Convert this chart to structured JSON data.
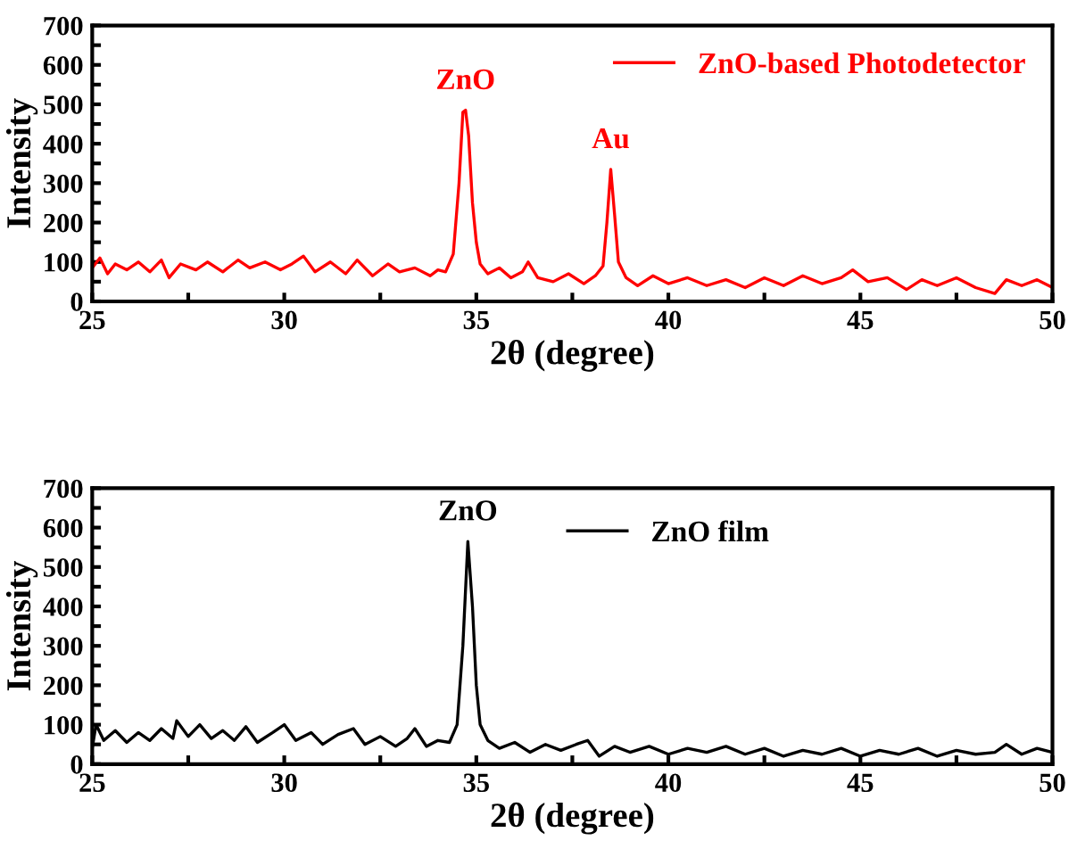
{
  "chart_data": [
    {
      "type": "line",
      "xlabel": "2θ (degree)",
      "ylabel": "Intensity",
      "legend": "top right",
      "grid": false,
      "tick_labels": true,
      "xlim": [
        25,
        50
      ],
      "ylim": [
        0,
        700
      ],
      "xticks": [
        25,
        {
          "value": 27.5,
          "label": null
        },
        30,
        {
          "value": 32.5,
          "label": null
        },
        35,
        {
          "value": 37.5,
          "label": null
        },
        40,
        {
          "value": 42.5,
          "label": null
        },
        45,
        {
          "value": 47.5,
          "label": null
        },
        50
      ],
      "yticks": [
        0,
        {
          "value": 50,
          "label": null
        },
        100,
        {
          "value": 150,
          "label": null
        },
        200,
        {
          "value": 250,
          "label": null
        },
        300,
        {
          "value": 350,
          "label": null
        },
        400,
        {
          "value": 450,
          "label": null
        },
        500,
        {
          "value": 550,
          "label": null
        },
        600,
        {
          "value": 650,
          "label": null
        },
        700
      ],
      "annotations": [
        {
          "text": "ZnO",
          "x": 34.72,
          "y": 485
        },
        {
          "text": "Au",
          "x": 38.5,
          "y": 335
        }
      ],
      "series": [
        {
          "name": "ZnO-based Photodetector",
          "color": "#ff0000",
          "x": [
            25.0,
            25.2,
            25.4,
            25.6,
            25.9,
            26.2,
            26.5,
            26.8,
            27.0,
            27.3,
            27.7,
            28.0,
            28.4,
            28.8,
            29.1,
            29.5,
            29.9,
            30.2,
            30.5,
            30.8,
            31.2,
            31.6,
            31.9,
            32.3,
            32.7,
            33.0,
            33.4,
            33.8,
            34.0,
            34.2,
            34.4,
            34.55,
            34.65,
            34.72,
            34.8,
            34.9,
            35.0,
            35.1,
            35.3,
            35.6,
            35.9,
            36.2,
            36.35,
            36.6,
            37.0,
            37.4,
            37.8,
            38.1,
            38.3,
            38.4,
            38.5,
            38.6,
            38.7,
            38.9,
            39.2,
            39.6,
            40.0,
            40.5,
            41.0,
            41.5,
            42.0,
            42.5,
            43.0,
            43.5,
            44.0,
            44.5,
            44.8,
            45.2,
            45.7,
            46.2,
            46.6,
            47.0,
            47.5,
            48.0,
            48.5,
            48.8,
            49.2,
            49.6,
            50.0
          ],
          "values": [
            85,
            110,
            70,
            95,
            80,
            100,
            75,
            105,
            60,
            95,
            80,
            100,
            75,
            105,
            85,
            100,
            80,
            95,
            115,
            75,
            100,
            70,
            105,
            65,
            95,
            75,
            85,
            65,
            80,
            75,
            120,
            300,
            480,
            485,
            420,
            250,
            150,
            95,
            70,
            85,
            60,
            75,
            100,
            60,
            50,
            70,
            45,
            65,
            90,
            200,
            335,
            220,
            100,
            60,
            40,
            65,
            45,
            60,
            40,
            55,
            35,
            60,
            40,
            65,
            45,
            60,
            80,
            50,
            60,
            30,
            55,
            40,
            60,
            35,
            20,
            55,
            40,
            55,
            35
          ]
        }
      ]
    },
    {
      "type": "line",
      "xlabel": "2θ (degree)",
      "ylabel": "Intensity",
      "legend": "top",
      "grid": false,
      "tick_labels": true,
      "xlim": [
        25,
        50
      ],
      "ylim": [
        0,
        700
      ],
      "xticks": [
        25,
        {
          "value": 27.5,
          "label": null
        },
        30,
        {
          "value": 32.5,
          "label": null
        },
        35,
        {
          "value": 37.5,
          "label": null
        },
        40,
        {
          "value": 42.5,
          "label": null
        },
        45,
        {
          "value": 47.5,
          "label": null
        },
        50
      ],
      "yticks": [
        0,
        {
          "value": 50,
          "label": null
        },
        100,
        {
          "value": 150,
          "label": null
        },
        200,
        {
          "value": 250,
          "label": null
        },
        300,
        {
          "value": 350,
          "label": null
        },
        400,
        {
          "value": 450,
          "label": null
        },
        500,
        {
          "value": 550,
          "label": null
        },
        600,
        {
          "value": 650,
          "label": null
        },
        700
      ],
      "annotations": [
        {
          "text": "ZnO",
          "x": 34.78,
          "y": 565
        }
      ],
      "series": [
        {
          "name": "ZnO film",
          "color": "#000000",
          "x": [
            25.0,
            25.1,
            25.3,
            25.6,
            25.9,
            26.2,
            26.5,
            26.8,
            27.1,
            27.2,
            27.5,
            27.8,
            28.1,
            28.4,
            28.7,
            29.0,
            29.3,
            29.7,
            30.0,
            30.3,
            30.7,
            31.0,
            31.4,
            31.8,
            32.1,
            32.5,
            32.9,
            33.2,
            33.4,
            33.7,
            34.0,
            34.3,
            34.5,
            34.65,
            34.78,
            34.9,
            35.0,
            35.1,
            35.3,
            35.6,
            36.0,
            36.4,
            36.8,
            37.2,
            37.6,
            37.9,
            38.2,
            38.6,
            39.0,
            39.5,
            40.0,
            40.5,
            41.0,
            41.5,
            42.0,
            42.5,
            43.0,
            43.5,
            44.0,
            44.5,
            45.0,
            45.5,
            46.0,
            46.5,
            47.0,
            47.5,
            48.0,
            48.5,
            48.8,
            49.2,
            49.6,
            50.0
          ],
          "values": [
            40,
            100,
            60,
            85,
            55,
            80,
            60,
            90,
            65,
            110,
            70,
            100,
            65,
            85,
            60,
            95,
            55,
            80,
            100,
            60,
            80,
            50,
            75,
            90,
            50,
            70,
            45,
            65,
            90,
            45,
            60,
            55,
            100,
            300,
            565,
            400,
            200,
            100,
            60,
            40,
            55,
            30,
            50,
            35,
            50,
            60,
            20,
            45,
            30,
            45,
            25,
            40,
            30,
            45,
            25,
            40,
            20,
            35,
            25,
            40,
            20,
            35,
            25,
            40,
            20,
            35,
            25,
            30,
            50,
            25,
            40,
            30
          ]
        }
      ]
    }
  ]
}
